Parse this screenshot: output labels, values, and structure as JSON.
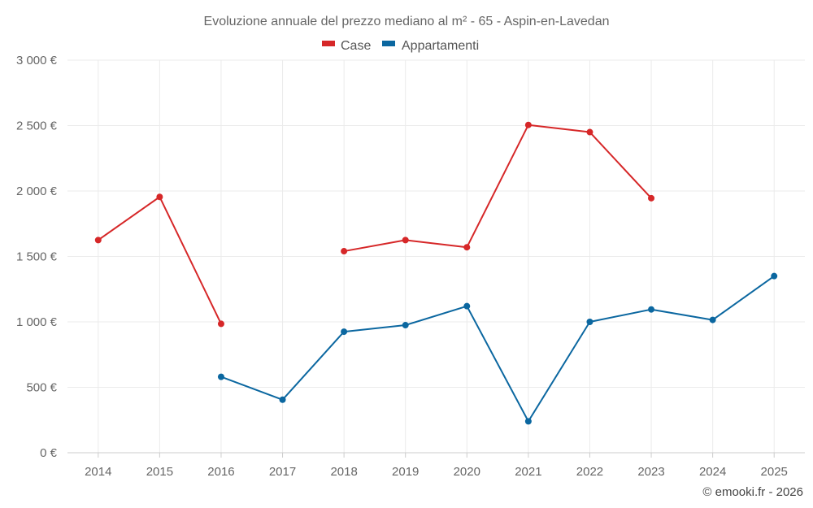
{
  "chart_data": {
    "type": "line",
    "title": "Evoluzione annuale del prezzo mediano al m² - 65 - Aspin-en-Lavedan",
    "categories": [
      "2014",
      "2015",
      "2016",
      "2017",
      "2018",
      "2019",
      "2020",
      "2021",
      "2022",
      "2023",
      "2024",
      "2025"
    ],
    "ylim": [
      0,
      3000
    ],
    "yticks": [
      0,
      500,
      1000,
      1500,
      2000,
      2500,
      3000
    ],
    "ytick_labels": [
      "0 €",
      "500 €",
      "1 000 €",
      "1 500 €",
      "2 000 €",
      "2 500 €",
      "3 000 €"
    ],
    "xlabel": "",
    "ylabel": "",
    "grid": true,
    "legend_position": "top-center",
    "series": [
      {
        "name": "Case",
        "color": "#d62728",
        "values": [
          1625,
          1955,
          985,
          null,
          1540,
          1625,
          1570,
          2505,
          2450,
          1945,
          null,
          null
        ]
      },
      {
        "name": "Appartamenti",
        "color": "#0b67a0",
        "values": [
          null,
          null,
          580,
          405,
          925,
          975,
          1120,
          240,
          1000,
          1095,
          1015,
          1350
        ]
      }
    ]
  },
  "credit": "© emooki.fr - 2026"
}
